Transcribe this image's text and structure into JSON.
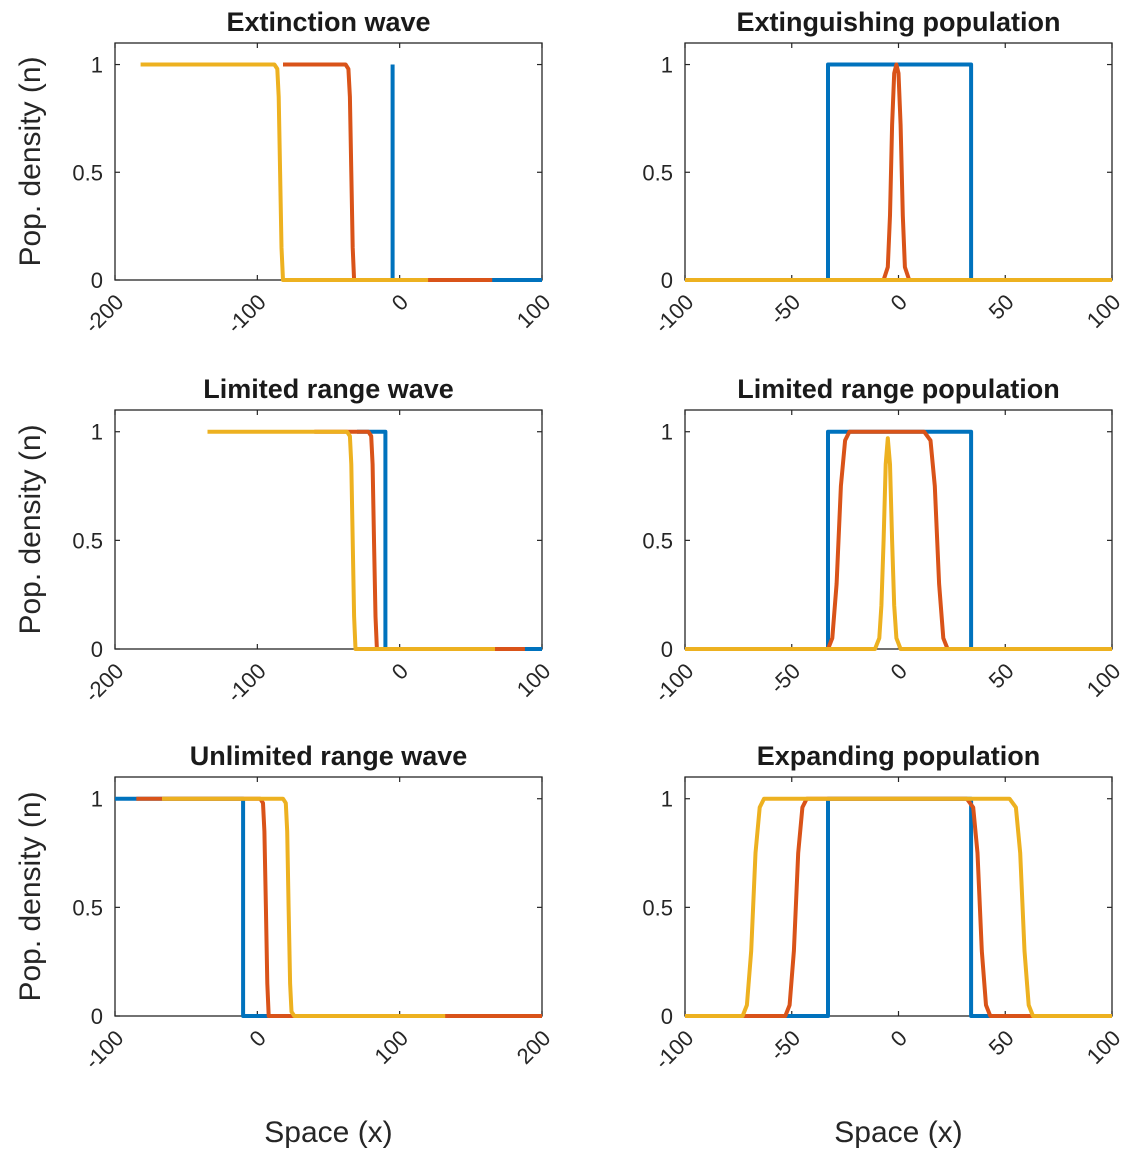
{
  "chart_data": [
    {
      "type": "line",
      "title": "Extinction wave",
      "ylabel": "Pop. density (n)",
      "xlabel": "",
      "xlim": [
        -200,
        100
      ],
      "ylim": [
        0,
        1.1
      ],
      "xticks": [
        -200,
        -100,
        0,
        100
      ],
      "yticks": [
        0,
        0.5,
        1
      ],
      "xticklabels": [
        "-200",
        "-100",
        "0",
        "100"
      ],
      "yticklabels": [
        "0",
        "0.5",
        "1"
      ],
      "series": [
        {
          "color": "#0072BD",
          "x": [
            -5,
            -5,
            -5,
            100
          ],
          "y": [
            1,
            1,
            0,
            0
          ],
          "x_start": -5
        },
        {
          "color": "#D95319",
          "x": [
            -82,
            -38,
            -36,
            -35,
            -34,
            -33,
            -32,
            65
          ],
          "y": [
            1,
            1,
            0.98,
            0.85,
            0.5,
            0.15,
            0,
            0
          ]
        },
        {
          "color": "#EDB120",
          "x": [
            -182,
            -88,
            -86,
            -85,
            -84,
            -83,
            -82,
            20
          ],
          "y": [
            1,
            1,
            0.98,
            0.85,
            0.5,
            0.15,
            0,
            0
          ]
        }
      ]
    },
    {
      "type": "line",
      "title": "Extinguishing population",
      "ylabel": "",
      "xlabel": "",
      "xlim": [
        -100,
        100
      ],
      "ylim": [
        0,
        1.1
      ],
      "xticks": [
        -100,
        -50,
        0,
        50,
        100
      ],
      "yticks": [
        0,
        0.5,
        1
      ],
      "xticklabels": [
        "-100",
        "-50",
        "0",
        "50",
        "100"
      ],
      "yticklabels": [
        "0",
        "0.5",
        "1"
      ],
      "series": [
        {
          "color": "#0072BD",
          "x": [
            -100,
            -33,
            -33,
            34,
            34,
            100
          ],
          "y": [
            0,
            0,
            1,
            1,
            0,
            0
          ]
        },
        {
          "color": "#D95319",
          "x": [
            -100,
            -7,
            -5,
            -4,
            -3,
            -2,
            -1,
            0,
            1,
            2,
            3,
            5,
            100
          ],
          "y": [
            0,
            0,
            0.06,
            0.3,
            0.72,
            0.96,
            1.0,
            0.96,
            0.72,
            0.3,
            0.06,
            0,
            0
          ]
        },
        {
          "color": "#EDB120",
          "x": [
            -100,
            100
          ],
          "y": [
            0,
            0
          ]
        }
      ]
    },
    {
      "type": "line",
      "title": "Limited range wave",
      "ylabel": "Pop. density (n)",
      "xlabel": "",
      "xlim": [
        -200,
        100
      ],
      "ylim": [
        0,
        1.1
      ],
      "xticks": [
        -200,
        -100,
        0,
        100
      ],
      "yticks": [
        0,
        0.5,
        1
      ],
      "xticklabels": [
        "-200",
        "-100",
        "0",
        "100"
      ],
      "yticklabels": [
        "0",
        "0.5",
        "1"
      ],
      "series": [
        {
          "color": "#0072BD",
          "x": [
            -30,
            -10,
            -10,
            100
          ],
          "y": [
            1,
            1,
            0,
            0
          ]
        },
        {
          "color": "#D95319",
          "x": [
            -60,
            -22,
            -20,
            -19,
            -18,
            -17,
            -16,
            88
          ],
          "y": [
            1,
            1,
            0.98,
            0.85,
            0.5,
            0.15,
            0,
            0
          ]
        },
        {
          "color": "#EDB120",
          "x": [
            -135,
            -37,
            -35,
            -34,
            -33,
            -32,
            -31,
            67
          ],
          "y": [
            1,
            1,
            0.98,
            0.85,
            0.5,
            0.15,
            0,
            0
          ]
        }
      ]
    },
    {
      "type": "line",
      "title": "Limited range population",
      "ylabel": "",
      "xlabel": "",
      "xlim": [
        -100,
        100
      ],
      "ylim": [
        0,
        1.1
      ],
      "xticks": [
        -100,
        -50,
        0,
        50,
        100
      ],
      "yticks": [
        0,
        0.5,
        1
      ],
      "xticklabels": [
        "-100",
        "-50",
        "0",
        "50",
        "100"
      ],
      "yticklabels": [
        "0",
        "0.5",
        "1"
      ],
      "series": [
        {
          "color": "#0072BD",
          "x": [
            -100,
            -33,
            -33,
            34,
            34,
            100
          ],
          "y": [
            0,
            0,
            1,
            1,
            0,
            0
          ]
        },
        {
          "color": "#D95319",
          "x": [
            -100,
            -33,
            -31,
            -29,
            -27,
            -25,
            -23,
            -20,
            12,
            15,
            17,
            19,
            21,
            23,
            100
          ],
          "y": [
            0,
            0,
            0.05,
            0.3,
            0.75,
            0.96,
            1,
            1,
            1,
            0.96,
            0.75,
            0.3,
            0.05,
            0,
            0
          ]
        },
        {
          "color": "#EDB120",
          "x": [
            -100,
            -11,
            -9,
            -8,
            -7,
            -6,
            -5,
            -4,
            -3,
            -2,
            -1,
            1,
            100
          ],
          "y": [
            0,
            0,
            0.05,
            0.2,
            0.5,
            0.85,
            0.97,
            0.85,
            0.5,
            0.2,
            0.05,
            0,
            0
          ]
        }
      ]
    },
    {
      "type": "line",
      "title": "Unlimited range wave",
      "ylabel": "Pop. density (n)",
      "xlabel": "Space (x)",
      "xlim": [
        -100,
        200
      ],
      "ylim": [
        0,
        1.1
      ],
      "xticks": [
        -100,
        0,
        100,
        200
      ],
      "yticks": [
        0,
        0.5,
        1
      ],
      "xticklabels": [
        "-100",
        "0",
        "100",
        "200"
      ],
      "yticklabels": [
        "0",
        "0.5",
        "1"
      ],
      "series": [
        {
          "color": "#0072BD",
          "x": [
            -100,
            -10,
            -10,
            200
          ],
          "y": [
            1,
            1,
            0,
            0
          ]
        },
        {
          "color": "#D95319",
          "x": [
            -85,
            2,
            4,
            5,
            6,
            7,
            8,
            200
          ],
          "y": [
            1,
            1,
            0.98,
            0.85,
            0.5,
            0.15,
            0,
            0
          ]
        },
        {
          "color": "#EDB120",
          "x": [
            -67,
            18,
            20,
            21,
            22,
            23,
            24,
            26,
            132
          ],
          "y": [
            1,
            1,
            0.98,
            0.85,
            0.5,
            0.15,
            0.02,
            0,
            0
          ]
        }
      ]
    },
    {
      "type": "line",
      "title": "Expanding population",
      "ylabel": "",
      "xlabel": "Space (x)",
      "xlim": [
        -100,
        100
      ],
      "ylim": [
        0,
        1.1
      ],
      "xticks": [
        -100,
        -50,
        0,
        50,
        100
      ],
      "yticks": [
        0,
        0.5,
        1
      ],
      "xticklabels": [
        "-100",
        "-50",
        "0",
        "50",
        "100"
      ],
      "yticklabels": [
        "0",
        "0.5",
        "1"
      ],
      "series": [
        {
          "color": "#0072BD",
          "x": [
            -100,
            -33,
            -33,
            34,
            34,
            100
          ],
          "y": [
            0,
            0,
            1,
            1,
            0,
            0
          ]
        },
        {
          "color": "#D95319",
          "x": [
            -100,
            -53,
            -51,
            -49,
            -47,
            -45,
            -43,
            -40,
            32,
            35,
            37,
            39,
            41,
            43,
            100
          ],
          "y": [
            0,
            0,
            0.05,
            0.3,
            0.75,
            0.96,
            1,
            1,
            1,
            0.96,
            0.75,
            0.3,
            0.05,
            0,
            0
          ]
        },
        {
          "color": "#EDB120",
          "x": [
            -100,
            -73,
            -71,
            -69,
            -67,
            -65,
            -63,
            -60,
            52,
            55,
            57,
            59,
            61,
            63,
            100
          ],
          "y": [
            0,
            0,
            0.05,
            0.3,
            0.75,
            0.96,
            1,
            1,
            1,
            0.96,
            0.75,
            0.3,
            0.05,
            0,
            0
          ]
        }
      ]
    }
  ]
}
